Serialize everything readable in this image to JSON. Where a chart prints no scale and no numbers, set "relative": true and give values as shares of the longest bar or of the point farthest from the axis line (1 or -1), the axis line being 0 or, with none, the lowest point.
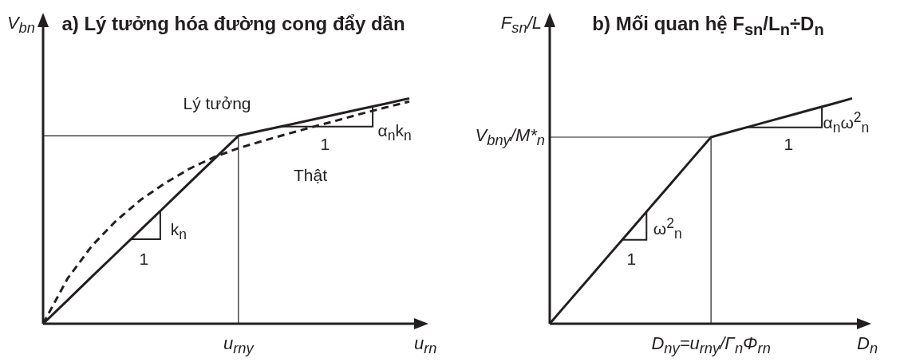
{
  "chart_data": [
    {
      "type": "line",
      "title": "a) Lý tưởng hóa đường cong đẩy dần",
      "xlabel": "u$_{rn}$",
      "ylabel": "V$_{bn}$",
      "relative": true,
      "marker": "none",
      "categories": [
        null,
        null,
        null,
        null,
        null,
        null,
        null,
        null,
        null,
        null,
        null,
        null,
        null,
        null,
        null,
        null
      ],
      "series": [
        {
          "color": "#231f20",
          "line_style": "solid",
          "values": [
            0,
            0.104,
            0.209,
            0.313,
            0.417,
            0.521,
            0.626,
            0.73,
            0.834,
            0.858,
            0.881,
            0.905,
            0.929,
            0.953,
            0.976,
            1.0
          ]
        },
        {
          "color": "#231f20",
          "line_style": "dashed",
          "values": [
            0,
            0.2,
            0.346,
            0.458,
            0.55,
            0.624,
            0.688,
            0.739,
            0.779,
            0.811,
            0.842,
            0.872,
            0.901,
            0.931,
            0.959,
            0.986
          ]
        }
      ],
      "ref_lines": [
        {
          "axis": "x",
          "label": "u$_{rny}$"
        },
        {
          "axis": "y",
          "value": 0.834
        }
      ],
      "annotations": [
        "Lý tưởng",
        "Thật",
        "1",
        "k$_{n}$",
        "1",
        "α$_{n}$k$_{n}$"
      ]
    },
    {
      "type": "line",
      "title": "b) Mối quan hệ F$_{sn}$/L$_{n}$÷D$_{n}$",
      "xlabel": "D$_{n}$",
      "ylabel": "F$_{sn}$/L",
      "relative": true,
      "marker": "none",
      "categories": [
        null,
        null,
        null,
        null,
        null,
        null,
        null,
        null,
        null,
        null,
        null,
        null,
        null,
        null,
        null,
        null
      ],
      "series": [
        {
          "color": "#231f20",
          "line_style": "solid",
          "values": [
            0,
            0.104,
            0.207,
            0.311,
            0.414,
            0.518,
            0.621,
            0.725,
            0.828,
            0.853,
            0.877,
            0.902,
            0.926,
            0.951,
            0.975,
            1.0
          ]
        }
      ],
      "ref_lines": [
        {
          "axis": "x",
          "label": "D$_{ny}$=u$_{rny}$/Γ$_{n}$Φ$_{rn}$"
        },
        {
          "axis": "y",
          "value": 0.828,
          "label": "V$_{bny}$/M*$_{n}$"
        }
      ],
      "annotations": [
        "1",
        "ω$^{2}$$_{n}$",
        "1",
        "α$_{n}$ω$^{2}$$_{n}$"
      ]
    }
  ]
}
